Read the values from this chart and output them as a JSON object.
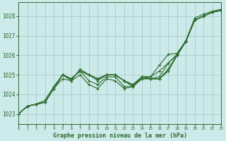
{
  "title": "Graphe pression niveau de la mer (hPa)",
  "background_color": "#cdeaea",
  "grid_color": "#a8cccc",
  "line_color": "#2d6b2d",
  "marker_color": "#2d6b2d",
  "xlim": [
    0,
    23
  ],
  "ylim": [
    1022.5,
    1028.7
  ],
  "yticks": [
    1023,
    1024,
    1025,
    1026,
    1027,
    1028
  ],
  "xticks": [
    0,
    1,
    2,
    3,
    4,
    5,
    6,
    7,
    8,
    9,
    10,
    11,
    12,
    13,
    14,
    15,
    16,
    17,
    18,
    19,
    20,
    21,
    22,
    23
  ],
  "series": [
    [
      1023.0,
      1023.4,
      1023.5,
      1023.6,
      1024.3,
      1025.0,
      1024.8,
      1025.2,
      1025.0,
      1024.8,
      1025.0,
      1025.0,
      1024.7,
      1024.4,
      1024.9,
      1024.8,
      1024.8,
      1025.3,
      1026.0,
      1026.7,
      1027.8,
      1028.0,
      1028.2,
      1028.3
    ],
    [
      1023.0,
      1023.4,
      1023.5,
      1023.6,
      1024.3,
      1025.0,
      1024.8,
      1025.2,
      1025.0,
      1024.8,
      1025.0,
      1025.0,
      1024.7,
      1024.4,
      1024.9,
      1024.8,
      1024.9,
      1025.6,
      1026.0,
      1026.7,
      1027.8,
      1028.0,
      1028.2,
      1028.3
    ],
    [
      1023.0,
      1023.4,
      1023.5,
      1023.6,
      1024.3,
      1025.0,
      1024.8,
      1025.2,
      1024.7,
      1024.5,
      1024.9,
      1024.9,
      1024.4,
      1024.4,
      1024.8,
      1024.8,
      1024.8,
      1025.2,
      1026.0,
      1026.7,
      1027.8,
      1028.0,
      1028.2,
      1028.3
    ],
    [
      1023.0,
      1023.4,
      1023.5,
      1023.6,
      1024.3,
      1024.8,
      1024.7,
      1025.0,
      1024.5,
      1024.3,
      1024.8,
      1024.7,
      1024.3,
      1024.4,
      1024.8,
      1024.8,
      1024.8,
      1025.2,
      1026.0,
      1026.7,
      1027.8,
      1028.0,
      1028.2,
      1028.3
    ],
    [
      1023.0,
      1023.4,
      1023.5,
      1023.7,
      1024.4,
      1025.0,
      1024.7,
      1025.3,
      1025.0,
      1024.8,
      1025.0,
      1025.0,
      1024.7,
      1024.5,
      1024.9,
      1024.9,
      1025.2,
      1025.6,
      1026.05,
      1026.7,
      1027.8,
      1028.0,
      1028.2,
      1028.3
    ]
  ],
  "series_top": [
    1023.0,
    1023.4,
    1023.5,
    1023.6,
    1024.3,
    1025.0,
    1024.8,
    1025.2,
    1025.0,
    1024.7,
    1025.0,
    1025.0,
    1024.7,
    1024.5,
    1024.9,
    1024.9,
    1025.5,
    1026.05,
    1026.1,
    1026.75,
    1027.9,
    1028.1,
    1028.25,
    1028.35
  ]
}
